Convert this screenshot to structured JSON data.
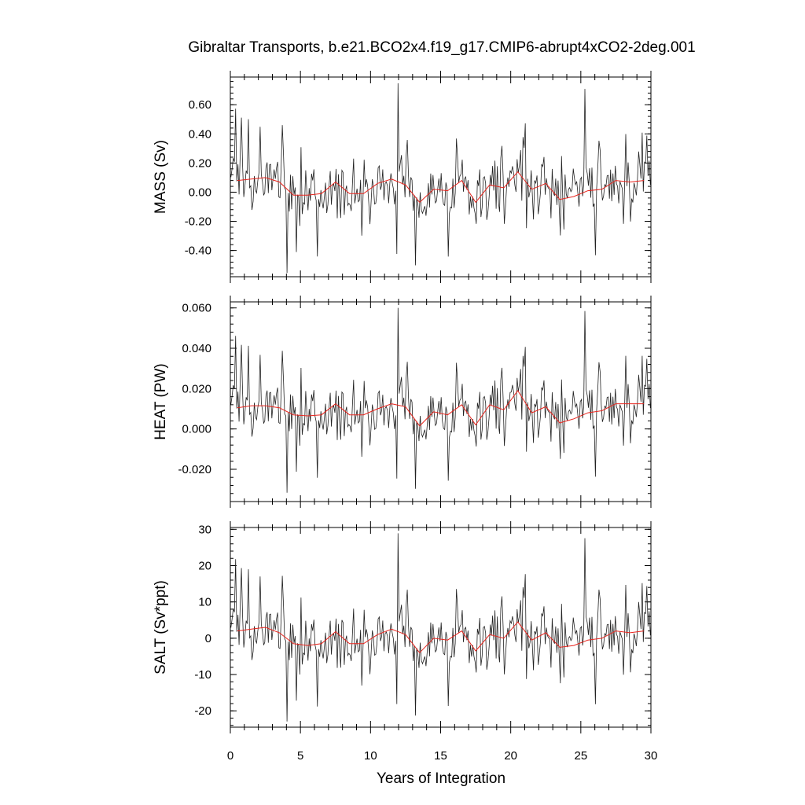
{
  "chart_data": {
    "type": "line",
    "title": "Gibraltar Transports, b.e21.BCO2x4.f19_g17.CMIP6-abrupt4xCO2-2deg.001",
    "xlabel": "Years of Integration",
    "xlim": [
      0,
      30
    ],
    "x_ticks": [
      "0",
      "5",
      "10",
      "15",
      "20",
      "25",
      "30"
    ],
    "x_tick_values": [
      0,
      5,
      10,
      15,
      20,
      25,
      30
    ],
    "colors": {
      "monthly": "#222222",
      "annual_mean": "#e8231c"
    },
    "panels": [
      {
        "id": "mass",
        "ylabel": "MASS (Sv)",
        "ylim": [
          -0.58,
          0.79
        ],
        "y_tick_values": [
          0.6,
          0.4,
          0.2,
          0.0,
          -0.2,
          -0.4
        ],
        "y_ticks": [
          "0.60",
          "0.40",
          "0.20",
          "0.00",
          "-0.20",
          "-0.40"
        ],
        "annual_mean": [
          [
            0.5,
            0.08
          ],
          [
            1.5,
            0.09
          ],
          [
            2.5,
            0.1
          ],
          [
            3.5,
            0.07
          ],
          [
            4.5,
            -0.02
          ],
          [
            5.5,
            -0.02
          ],
          [
            6.5,
            -0.01
          ],
          [
            7.5,
            0.07
          ],
          [
            8.5,
            -0.01
          ],
          [
            9.5,
            -0.01
          ],
          [
            10.5,
            0.06
          ],
          [
            11.5,
            0.09
          ],
          [
            12.5,
            0.05
          ],
          [
            13.5,
            -0.07
          ],
          [
            14.5,
            0.02
          ],
          [
            15.5,
            0.01
          ],
          [
            16.5,
            0.08
          ],
          [
            17.5,
            -0.07
          ],
          [
            18.5,
            0.05
          ],
          [
            19.5,
            0.03
          ],
          [
            20.5,
            0.14
          ],
          [
            21.5,
            0.02
          ],
          [
            22.5,
            0.06
          ],
          [
            23.5,
            -0.05
          ],
          [
            24.5,
            -0.03
          ],
          [
            25.5,
            0.01
          ],
          [
            26.5,
            0.02
          ],
          [
            27.5,
            0.08
          ],
          [
            28.5,
            0.07
          ],
          [
            29.5,
            0.08
          ]
        ]
      },
      {
        "id": "heat",
        "ylabel": "HEAT (PW)",
        "ylim": [
          -0.036,
          0.063
        ],
        "y_tick_values": [
          0.06,
          0.04,
          0.02,
          0.0,
          -0.02
        ],
        "y_ticks": [
          "0.060",
          "0.040",
          "0.020",
          "0.000",
          "-0.020"
        ],
        "annual_mean": [
          [
            0.5,
            0.0105
          ],
          [
            1.5,
            0.0115
          ],
          [
            2.5,
            0.0115
          ],
          [
            3.5,
            0.0105
          ],
          [
            4.5,
            0.007
          ],
          [
            5.5,
            0.0065
          ],
          [
            6.5,
            0.007
          ],
          [
            7.5,
            0.0125
          ],
          [
            8.5,
            0.007
          ],
          [
            9.5,
            0.007
          ],
          [
            10.5,
            0.01
          ],
          [
            11.5,
            0.0125
          ],
          [
            12.5,
            0.011
          ],
          [
            13.5,
            0.0015
          ],
          [
            14.5,
            0.0085
          ],
          [
            15.5,
            0.007
          ],
          [
            16.5,
            0.012
          ],
          [
            17.5,
            0.002
          ],
          [
            18.5,
            0.012
          ],
          [
            19.5,
            0.0095
          ],
          [
            20.5,
            0.019
          ],
          [
            21.5,
            0.008
          ],
          [
            22.5,
            0.011
          ],
          [
            23.5,
            0.003
          ],
          [
            24.5,
            0.005
          ],
          [
            25.5,
            0.008
          ],
          [
            26.5,
            0.009
          ],
          [
            27.5,
            0.0125
          ],
          [
            28.5,
            0.0125
          ],
          [
            29.5,
            0.0125
          ]
        ]
      },
      {
        "id": "salt",
        "ylabel": "SALT (Sv*ppt)",
        "ylim": [
          -24.5,
          30.5
        ],
        "y_tick_values": [
          30,
          20,
          10,
          0,
          -10,
          -20
        ],
        "y_ticks": [
          "30",
          "20",
          "10",
          "0",
          "-10",
          "-20"
        ],
        "annual_mean": [
          [
            0.5,
            2.0
          ],
          [
            1.5,
            2.5
          ],
          [
            2.5,
            3.0
          ],
          [
            3.5,
            1.5
          ],
          [
            4.5,
            -1.5
          ],
          [
            5.5,
            -2.0
          ],
          [
            6.5,
            -1.5
          ],
          [
            7.5,
            1.8
          ],
          [
            8.5,
            -1.5
          ],
          [
            9.5,
            -1.5
          ],
          [
            10.5,
            1.0
          ],
          [
            11.5,
            2.5
          ],
          [
            12.5,
            1.0
          ],
          [
            13.5,
            -4.0
          ],
          [
            14.5,
            0.0
          ],
          [
            15.5,
            -0.5
          ],
          [
            16.5,
            2.0
          ],
          [
            17.5,
            -3.5
          ],
          [
            18.5,
            1.0
          ],
          [
            19.5,
            0.0
          ],
          [
            20.5,
            4.5
          ],
          [
            21.5,
            -0.5
          ],
          [
            22.5,
            1.5
          ],
          [
            23.5,
            -2.5
          ],
          [
            24.5,
            -2.0
          ],
          [
            25.5,
            -0.5
          ],
          [
            26.5,
            0.0
          ],
          [
            27.5,
            2.0
          ],
          [
            28.5,
            1.5
          ],
          [
            29.5,
            2.0
          ]
        ]
      }
    ]
  }
}
